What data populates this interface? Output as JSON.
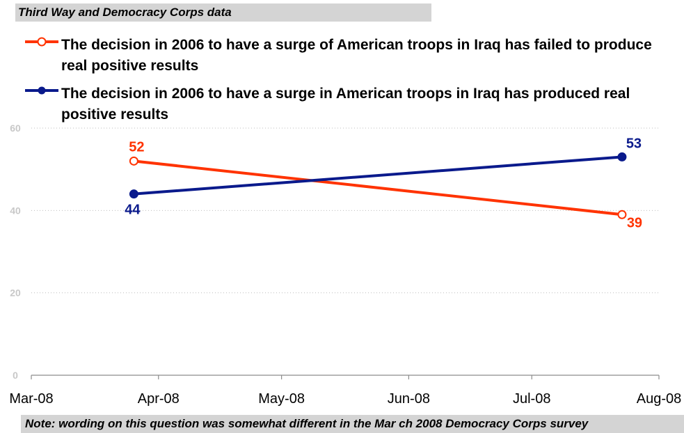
{
  "source_label": "Third Way and Democracy Corps data",
  "note": "Note: wording on this question was somewhat different in the Mar ch 2008 Democracy Corps survey",
  "colors": {
    "failed": "#ff3300",
    "produced": "#0a1a8c",
    "grid": "#bdbdbd",
    "axis": "#8c8c8c",
    "ytick": "#c8c8c8",
    "box": "#d4d4d4"
  },
  "legend": [
    {
      "label": "The decision in 2006 to have a surge of American troops in Iraq has failed to produce real positive results",
      "color": "#ff3300",
      "marker": "open-circle"
    },
    {
      "label": "The decision in 2006 to have a surge in American troops in Iraq has produced real positive results",
      "color": "#0a1a8c",
      "marker": "filled-circle"
    }
  ],
  "chart_data": {
    "type": "line",
    "title": "",
    "xlabel": "",
    "ylabel": "",
    "x_ticks": [
      "Mar-08",
      "Apr-08",
      "May-08",
      "Jun-08",
      "Jul-08",
      "Aug-08"
    ],
    "y_ticks": [
      "0",
      "20",
      "40",
      "60"
    ],
    "ylim": [
      0,
      60
    ],
    "xlim": [
      "2008-03-01",
      "2008-08-01"
    ],
    "grid": true,
    "legend_position": "top",
    "series": [
      {
        "name": "The decision in 2006 to have a surge of American troops in Iraq has failed to produce real positive results",
        "color": "#ff3300",
        "marker": "open-circle",
        "x": [
          "2008-03-26",
          "2008-07-23"
        ],
        "values": [
          52,
          39
        ],
        "labels": [
          "52",
          "39"
        ]
      },
      {
        "name": "The decision in 2006 to have a surge in American troops in Iraq has produced real positive results",
        "color": "#0a1a8c",
        "marker": "filled-circle",
        "x": [
          "2008-03-26",
          "2008-07-23"
        ],
        "values": [
          44,
          53
        ],
        "labels": [
          "44",
          "53"
        ]
      }
    ]
  }
}
